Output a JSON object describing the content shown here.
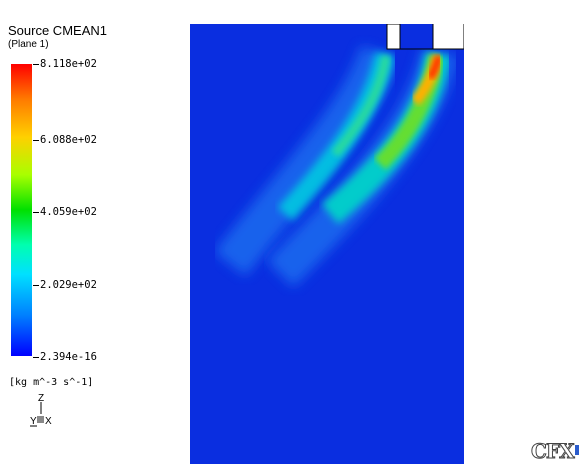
{
  "legend": {
    "title": "Source  CMEAN1",
    "subtitle": "(Plane  1)",
    "ticks": [
      "8.118e+02",
      "6.088e+02",
      "4.059e+02",
      "2.029e+02",
      "2.394e-16"
    ],
    "units": "[kg m^-3 s^-1]"
  },
  "triad": {
    "z": "Z",
    "y": "Y",
    "x": "X"
  },
  "logo": {
    "text": "CFX"
  },
  "colors": {
    "background_field": "#0a2ee0",
    "max": "#ff0000",
    "min": "#0000ff"
  }
}
